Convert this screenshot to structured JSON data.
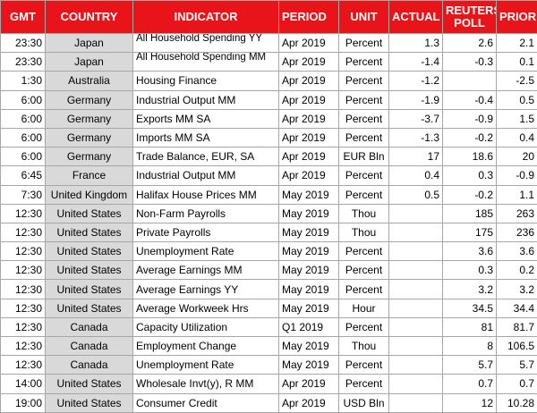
{
  "table": {
    "header": [
      "GMT",
      "COUNTRY",
      "INDICATOR",
      "PERIOD",
      "UNIT",
      "ACTUAL",
      "REUTERS POLL",
      "PRIOR"
    ],
    "rows": [
      [
        "23:30",
        "Japan",
        "All Household Spending YY",
        "Apr 2019",
        "Percent",
        "1.3",
        "2.6",
        "2.1"
      ],
      [
        "23:30",
        "Japan",
        "All Household Spending MM",
        "Apr 2019",
        "Percent",
        "-1.4",
        "-0.3",
        "0.1"
      ],
      [
        "1:30",
        "Australia",
        "Housing Finance",
        "Apr 2019",
        "Percent",
        "-1.2",
        null,
        "-2.5"
      ],
      [
        "6:00",
        "Germany",
        "Industrial Output MM",
        "Apr 2019",
        "Percent",
        "-1.9",
        "-0.4",
        "0.5"
      ],
      [
        "6:00",
        "Germany",
        "Exports MM SA",
        "Apr 2019",
        "Percent",
        "-3.7",
        "-0.9",
        "1.5"
      ],
      [
        "6:00",
        "Germany",
        "Imports MM SA",
        "Apr 2019",
        "Percent",
        "-1.3",
        "-0.2",
        "0.4"
      ],
      [
        "6:00",
        "Germany",
        "Trade Balance, EUR, SA",
        "Apr 2019",
        "EUR Bln",
        "17",
        "18.6",
        "20"
      ],
      [
        "6:45",
        "France",
        "Industrial Output MM",
        "Apr 2019",
        "Percent",
        "0.4",
        "0.3",
        "-0.9"
      ],
      [
        "7:30",
        "United Kingdom",
        "Halifax House Prices MM",
        "May 2019",
        "Percent",
        "0.5",
        "-0.2",
        "1.1"
      ],
      [
        "12:30",
        "United States",
        "Non-Farm Payrolls",
        "May 2019",
        "Thou",
        null,
        "185",
        "263"
      ],
      [
        "12:30",
        "United States",
        "Private Payrolls",
        "May 2019",
        "Thou",
        null,
        "175",
        "236"
      ],
      [
        "12:30",
        "United States",
        "Unemployment Rate",
        "May 2019",
        "Percent",
        null,
        "3.6",
        "3.6"
      ],
      [
        "12:30",
        "United States",
        "Average Earnings MM",
        "May 2019",
        "Percent",
        null,
        "0.3",
        "0.2"
      ],
      [
        "12:30",
        "United States",
        "Average Earnings YY",
        "May 2019",
        "Percent",
        null,
        "3.2",
        "3.2"
      ],
      [
        "12:30",
        "United States",
        "Average Workweek Hrs",
        "May 2019",
        "Hour",
        null,
        "34.5",
        "34.4"
      ],
      [
        "12:30",
        "Canada",
        "Capacity Utilization",
        "Q1 2019",
        "Percent",
        null,
        "81",
        "81.7"
      ],
      [
        "12:30",
        "Canada",
        "Employment Change",
        "May 2019",
        "Thou",
        null,
        "8",
        "106.5"
      ],
      [
        "12:30",
        "Canada",
        "Unemployment Rate",
        "May 2019",
        "Percent",
        null,
        "5.7",
        "5.7"
      ],
      [
        "14:00",
        "United States",
        "Wholesale Invt(y), R MM",
        "Apr 2019",
        "Percent",
        null,
        "0.7",
        "0.7"
      ],
      [
        "19:00",
        "United States",
        "Consumer Credit",
        "Apr 2019",
        "USD Bln",
        null,
        "12",
        "10.28"
      ]
    ]
  }
}
